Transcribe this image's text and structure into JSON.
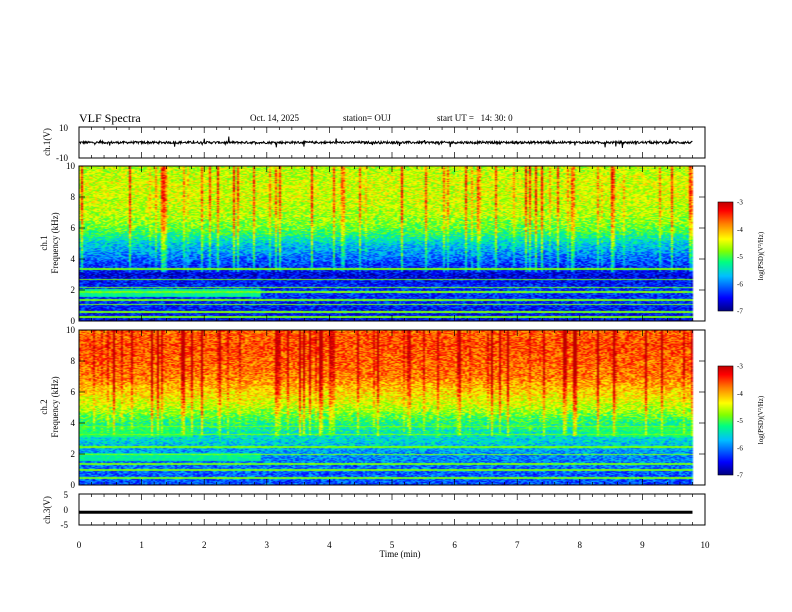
{
  "header": {
    "title": "VLF Spectra",
    "date": "Oct. 14, 2025",
    "station": "station= OUJ",
    "start_ut": "start UT =   14: 30: 0"
  },
  "chart_data": [
    {
      "type": "line",
      "panel": "ch1-waveform",
      "ylabel": "ch.1(V)",
      "ylim": [
        -10,
        10
      ],
      "ytick_labels": [
        "10",
        "-10"
      ],
      "series": [
        {
          "description_level_V": 0.0,
          "noise_amplitude_V": 1.5
        }
      ]
    },
    {
      "type": "heatmap",
      "panel": "ch1-spectrogram",
      "ylabel": "ch.1\nFrequency (kHz)",
      "ylim": [
        0,
        10
      ],
      "ytick_labels": [
        "0",
        "2",
        "4",
        "6",
        "8",
        "10"
      ],
      "xlim": [
        0,
        10
      ],
      "data_end_min": 9.8,
      "colorbar": {
        "label": "log(PSD)(V²/Hz)",
        "range": [
          -7,
          -3
        ],
        "tick_labels": [
          "-3",
          "-4",
          "-5",
          "-6",
          "-7"
        ]
      },
      "frequency_profile_kHz": [
        {
          "f": 0.0,
          "level": -6.6
        },
        {
          "f": 1.0,
          "level": -6.4
        },
        {
          "f": 2.0,
          "level": -6.3
        },
        {
          "f": 3.0,
          "level": -6.6
        },
        {
          "f": 4.0,
          "level": -6.1
        },
        {
          "f": 5.0,
          "level": -5.6
        },
        {
          "f": 6.0,
          "level": -4.9
        },
        {
          "f": 7.0,
          "level": -4.6
        },
        {
          "f": 8.0,
          "level": -4.5
        },
        {
          "f": 9.0,
          "level": -4.5
        },
        {
          "f": 10.0,
          "level": -4.6
        }
      ],
      "tone_lines_kHz": [
        0.3,
        0.6,
        1.1,
        1.4,
        1.9,
        2.2,
        2.7,
        3.4
      ],
      "segments": [
        {
          "t0_min": 0.0,
          "t1_min": 2.9,
          "f0_kHz": 1.6,
          "f1_kHz": 2.1,
          "level": -5.3
        }
      ]
    },
    {
      "type": "heatmap",
      "panel": "ch2-spectrogram",
      "ylabel": "ch.2\nFrequency (kHz)",
      "ylim": [
        0,
        10
      ],
      "ytick_labels": [
        "0",
        "2",
        "4",
        "6",
        "8",
        "10"
      ],
      "xlim": [
        0,
        10
      ],
      "data_end_min": 9.8,
      "colorbar": {
        "label": "log(PSD)(V²/Hz)",
        "range": [
          -7,
          -3
        ],
        "tick_labels": [
          "-3",
          "-4",
          "-5",
          "-6",
          "-7"
        ]
      },
      "frequency_profile_kHz": [
        {
          "f": 0.0,
          "level": -6.2
        },
        {
          "f": 1.0,
          "level": -6.1
        },
        {
          "f": 2.0,
          "level": -5.9
        },
        {
          "f": 3.0,
          "level": -5.5
        },
        {
          "f": 4.0,
          "level": -5.2
        },
        {
          "f": 5.0,
          "level": -4.6
        },
        {
          "f": 6.0,
          "level": -4.2
        },
        {
          "f": 7.0,
          "level": -3.8
        },
        {
          "f": 8.0,
          "level": -3.7
        },
        {
          "f": 9.0,
          "level": -3.6
        },
        {
          "f": 10.0,
          "level": -3.7
        }
      ],
      "tone_lines_kHz": [
        0.5,
        1.0,
        1.4,
        2.0,
        2.5,
        3.3,
        3.8
      ],
      "segments": [
        {
          "t0_min": 0.0,
          "t1_min": 1.8,
          "f0_kHz": 3.1,
          "f1_kHz": 3.8,
          "level": -5.2
        },
        {
          "t0_min": 8.1,
          "t1_min": 9.8,
          "f0_kHz": 3.1,
          "f1_kHz": 3.8,
          "level": -5.2
        },
        {
          "t0_min": 0.0,
          "t1_min": 2.9,
          "f0_kHz": 1.6,
          "f1_kHz": 2.1,
          "level": -5.3
        }
      ]
    },
    {
      "type": "line",
      "panel": "ch3-waveform",
      "ylabel": "ch.3(V)",
      "ylim": [
        -5,
        5
      ],
      "ytick_labels": [
        "5",
        "0",
        "-5"
      ],
      "series": [
        {
          "description_level_V": -0.8,
          "thickness_V": 0.8
        }
      ]
    }
  ],
  "xaxis": {
    "label": "Time (min)",
    "tick_labels": [
      "0",
      "1",
      "2",
      "3",
      "4",
      "5",
      "6",
      "7",
      "8",
      "9",
      "10"
    ],
    "range": [
      0,
      10
    ]
  },
  "colors": {
    "scale": [
      "#00007f",
      "#0000ff",
      "#00bfff",
      "#00ff80",
      "#80ff00",
      "#ffff00",
      "#ff8000",
      "#ff0000",
      "#c00000"
    ]
  }
}
